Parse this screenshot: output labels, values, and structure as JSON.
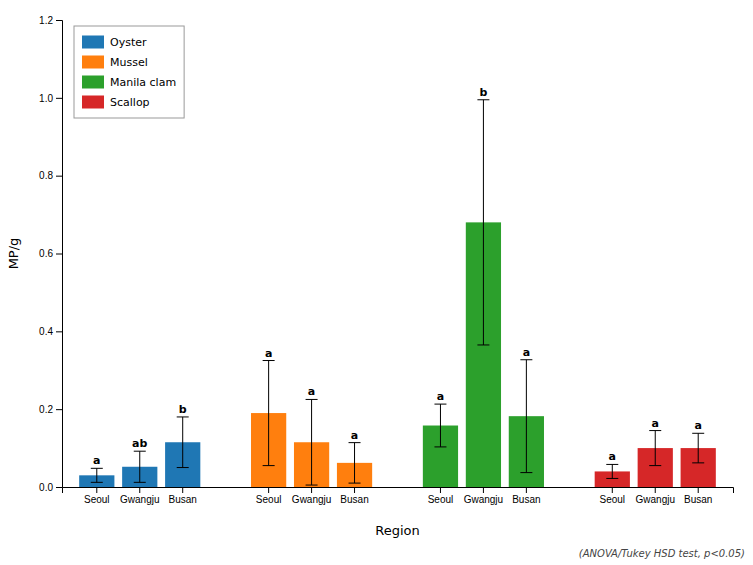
{
  "chart_data": {
    "type": "bar",
    "xlabel": "Region",
    "ylabel": "MP/g",
    "annotation": "(ANOVA/Tukey HSD test, p<0.05)",
    "categories": [
      "Seoul",
      "Gwangju",
      "Busan"
    ],
    "series": [
      {
        "name": "Oyster",
        "values": [
          0.03,
          0.052,
          0.115
        ],
        "errors": [
          0.018,
          0.04,
          0.065
        ],
        "significance": [
          "a",
          "ab",
          "b"
        ]
      },
      {
        "name": "Mussel",
        "values": [
          0.19,
          0.115,
          0.062
        ],
        "errors": [
          0.135,
          0.11,
          0.052
        ],
        "significance": [
          "a",
          "a",
          "a"
        ]
      },
      {
        "name": "Manila clam",
        "values": [
          0.158,
          0.68,
          0.182
        ],
        "errors": [
          0.055,
          0.315,
          0.145
        ],
        "significance": [
          "a",
          "b",
          "a"
        ]
      },
      {
        "name": "Scallop",
        "values": [
          0.04,
          0.1,
          0.1
        ],
        "errors": [
          0.018,
          0.045,
          0.038
        ],
        "significance": [
          "a",
          "a",
          "a"
        ]
      }
    ],
    "ylim": [
      0,
      1.2
    ],
    "yticks": [
      {
        "value": 0.0,
        "label": "0.0"
      },
      0.2,
      0.4,
      0.6,
      0.8,
      {
        "value": 1.0,
        "label": "1.0"
      },
      1.2
    ],
    "legend": "upper left",
    "grid": false
  }
}
